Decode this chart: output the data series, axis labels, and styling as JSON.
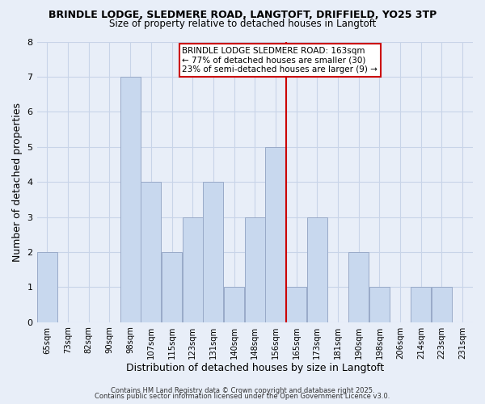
{
  "title_line1": "BRINDLE LODGE, SLEDMERE ROAD, LANGTOFT, DRIFFIELD, YO25 3TP",
  "title_line2": "Size of property relative to detached houses in Langtoft",
  "xlabel": "Distribution of detached houses by size in Langtoft",
  "ylabel": "Number of detached properties",
  "categories": [
    "65sqm",
    "73sqm",
    "82sqm",
    "90sqm",
    "98sqm",
    "107sqm",
    "115sqm",
    "123sqm",
    "131sqm",
    "140sqm",
    "148sqm",
    "156sqm",
    "165sqm",
    "173sqm",
    "181sqm",
    "190sqm",
    "198sqm",
    "206sqm",
    "214sqm",
    "223sqm",
    "231sqm"
  ],
  "counts": [
    2,
    0,
    0,
    0,
    7,
    4,
    2,
    3,
    4,
    1,
    3,
    5,
    1,
    3,
    0,
    2,
    1,
    0,
    1,
    1,
    0
  ],
  "bar_color": "#c8d8ee",
  "bar_edge_color": "#99aac8",
  "grid_color": "#c8d4e8",
  "reference_bar_index": 12,
  "reference_line_color": "#cc0000",
  "ylim": [
    0,
    8
  ],
  "yticks": [
    0,
    1,
    2,
    3,
    4,
    5,
    6,
    7,
    8
  ],
  "annotation_text": "BRINDLE LODGE SLEDMERE ROAD: 163sqm\n← 77% of detached houses are smaller (30)\n23% of semi-detached houses are larger (9) →",
  "annotation_box_color": "#ffffff",
  "annotation_border_color": "#cc0000",
  "footer_line1": "Contains HM Land Registry data © Crown copyright and database right 2025.",
  "footer_line2": "Contains public sector information licensed under the Open Government Licence v3.0.",
  "background_color": "#e8eef8",
  "plot_background_color": "#e8eef8"
}
